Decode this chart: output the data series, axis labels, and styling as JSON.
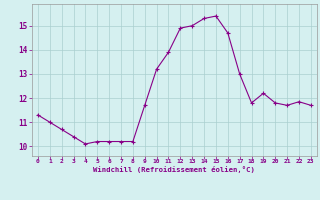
{
  "x": [
    0,
    1,
    2,
    3,
    4,
    5,
    6,
    7,
    8,
    9,
    10,
    11,
    12,
    13,
    14,
    15,
    16,
    17,
    18,
    19,
    20,
    21,
    22,
    23
  ],
  "y": [
    11.3,
    11.0,
    10.7,
    10.4,
    10.1,
    10.2,
    10.2,
    10.2,
    10.2,
    11.7,
    13.2,
    13.9,
    14.9,
    15.0,
    15.3,
    15.4,
    14.7,
    13.0,
    11.8,
    12.2,
    11.8,
    11.7,
    11.85,
    11.7
  ],
  "line_color": "#880088",
  "marker": "+",
  "marker_size": 3,
  "bg_color": "#d5f0f0",
  "grid_color": "#aacfcf",
  "xlabel": "Windchill (Refroidissement éolien,°C)",
  "xlabel_color": "#880088",
  "xtick_color": "#880088",
  "ytick_color": "#880088",
  "ylim": [
    9.6,
    15.9
  ],
  "yticks": [
    10,
    11,
    12,
    13,
    14,
    15
  ],
  "xlim": [
    -0.5,
    23.5
  ],
  "xticks": [
    0,
    1,
    2,
    3,
    4,
    5,
    6,
    7,
    8,
    9,
    10,
    11,
    12,
    13,
    14,
    15,
    16,
    17,
    18,
    19,
    20,
    21,
    22,
    23
  ]
}
